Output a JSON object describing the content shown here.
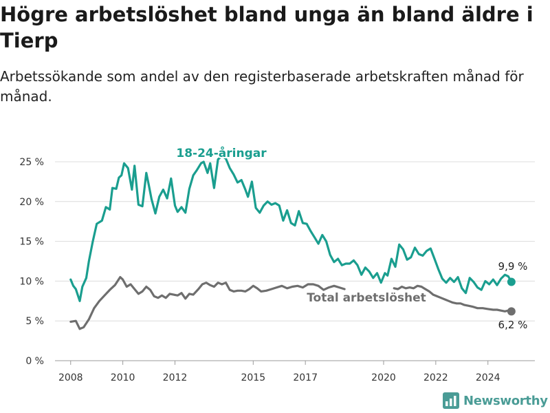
{
  "title": "Högre arbetslöshet bland unga än bland äldre i Tierp",
  "subtitle": "Arbetssökande som andel av den registerbaserade arbetskraften månad för månad.",
  "brand": {
    "name": "Newsworthy",
    "icon": "bar-chart-logo-icon",
    "color": "#4a9c96"
  },
  "chart_data": {
    "type": "line",
    "x_unit": "year",
    "xlim": [
      2007.4,
      2025.8
    ],
    "ylim": [
      0,
      25
    ],
    "x_ticks": [
      2008,
      2010,
      2012,
      2015,
      2017,
      2020,
      2022,
      2024
    ],
    "x_tick_labels": [
      "2008",
      "2010",
      "2012",
      "2015",
      "2017",
      "2020",
      "2022",
      "2024"
    ],
    "y_ticks": [
      0,
      5,
      10,
      15,
      20,
      25
    ],
    "y_tick_labels": [
      "0 %",
      "5 %",
      "10 %",
      "15 %",
      "20 %",
      "25 %"
    ],
    "grid": "horizontal",
    "legend": "none",
    "series": [
      {
        "name": "18-24-åringar",
        "color": "#1a9e8f",
        "end_label": "9,9 %",
        "x": [
          2008.0,
          2008.1,
          2008.2,
          2008.35,
          2008.45,
          2008.6,
          2008.7,
          2008.85,
          2009.0,
          2009.2,
          2009.35,
          2009.5,
          2009.6,
          2009.75,
          2009.85,
          2009.95,
          2010.05,
          2010.2,
          2010.35,
          2010.45,
          2010.6,
          2010.75,
          2010.9,
          2011.0,
          2011.1,
          2011.25,
          2011.4,
          2011.55,
          2011.7,
          2011.85,
          2012.0,
          2012.1,
          2012.25,
          2012.4,
          2012.55,
          2012.7,
          2012.85,
          2013.0,
          2013.1,
          2013.25,
          2013.35,
          2013.5,
          2013.65,
          2013.8,
          2013.95,
          2014.1,
          2014.25,
          2014.4,
          2014.55,
          2014.7,
          2014.8,
          2014.95,
          2015.1,
          2015.25,
          2015.4,
          2015.55,
          2015.7,
          2015.85,
          2016.0,
          2016.15,
          2016.3,
          2016.45,
          2016.6,
          2016.75,
          2016.9,
          2017.05,
          2017.2,
          2017.35,
          2017.5,
          2017.65,
          2017.8,
          2017.95,
          2018.1,
          2018.25,
          2018.4,
          2018.55,
          2018.7,
          2018.85,
          2019.0,
          2019.15,
          2019.3,
          2019.45,
          2019.6,
          2019.75,
          2019.9,
          2020.05,
          2020.15,
          2020.3,
          2020.45,
          2020.6,
          2020.75,
          2020.9,
          2021.05,
          2021.2,
          2021.35,
          2021.5,
          2021.65,
          2021.8,
          2021.95,
          2022.1,
          2022.25,
          2022.4,
          2022.55,
          2022.7,
          2022.85,
          2023.0,
          2023.15,
          2023.3,
          2023.45,
          2023.6,
          2023.75,
          2023.9,
          2024.05,
          2024.2,
          2024.35,
          2024.5,
          2024.65,
          2024.78,
          2024.9
        ],
        "y": [
          10.2,
          9.4,
          9.0,
          7.5,
          9.3,
          10.4,
          12.5,
          15.0,
          17.2,
          17.6,
          19.3,
          19.0,
          21.7,
          21.6,
          23.0,
          23.3,
          24.8,
          24.2,
          21.5,
          24.5,
          19.6,
          19.4,
          23.6,
          22.0,
          20.3,
          18.5,
          20.6,
          21.5,
          20.4,
          22.9,
          19.5,
          18.7,
          19.3,
          18.6,
          21.6,
          23.3,
          24.0,
          24.8,
          25.0,
          23.6,
          24.8,
          21.7,
          25.3,
          25.7,
          25.4,
          24.2,
          23.4,
          22.4,
          22.7,
          21.5,
          20.6,
          22.5,
          19.2,
          18.6,
          19.5,
          20.0,
          19.6,
          19.8,
          19.5,
          17.6,
          18.9,
          17.3,
          17.0,
          18.8,
          17.3,
          17.2,
          16.3,
          15.5,
          14.7,
          15.8,
          15.0,
          13.3,
          12.4,
          12.8,
          12.0,
          12.2,
          12.2,
          12.6,
          12.0,
          10.8,
          11.7,
          11.2,
          10.4,
          11.0,
          9.8,
          11.0,
          10.7,
          12.8,
          11.8,
          14.6,
          14.0,
          12.7,
          13.0,
          14.2,
          13.4,
          13.2,
          13.8,
          14.1,
          12.8,
          11.5,
          10.3,
          9.8,
          10.4,
          9.9,
          10.5,
          9.1,
          8.5,
          10.4,
          9.9,
          9.2,
          8.9,
          10.0,
          9.6,
          10.2,
          9.5,
          10.3,
          10.8,
          10.6,
          9.9
        ]
      },
      {
        "name": "Total arbetslöshet",
        "color": "#6e6e6e",
        "end_label": "6,2 %",
        "x": [
          2008.0,
          2008.2,
          2008.35,
          2008.5,
          2008.7,
          2008.9,
          2009.1,
          2009.3,
          2009.5,
          2009.7,
          2009.9,
          2010.0,
          2010.15,
          2010.3,
          2010.45,
          2010.6,
          2010.75,
          2010.9,
          2011.05,
          2011.2,
          2011.35,
          2011.5,
          2011.65,
          2011.8,
          2011.95,
          2012.1,
          2012.25,
          2012.4,
          2012.55,
          2012.7,
          2012.9,
          2013.05,
          2013.2,
          2013.35,
          2013.5,
          2013.65,
          2013.8,
          2013.95,
          2014.1,
          2014.25,
          2014.4,
          2014.55,
          2014.7,
          2014.85,
          2015.0,
          2015.15,
          2015.3,
          2015.5,
          2015.7,
          2015.9,
          2016.1,
          2016.3,
          2016.5,
          2016.7,
          2016.9,
          2017.1,
          2017.3,
          2017.5,
          2017.7,
          2017.9,
          2018.1,
          2018.3,
          2018.5,
          2020.4,
          2020.55,
          2020.7,
          2020.85,
          2021.0,
          2021.15,
          2021.3,
          2021.45,
          2021.6,
          2021.75,
          2021.9,
          2022.05,
          2022.2,
          2022.35,
          2022.5,
          2022.65,
          2022.8,
          2022.95,
          2023.1,
          2023.25,
          2023.4,
          2023.6,
          2023.8,
          2024.0,
          2024.2,
          2024.35,
          2024.5,
          2024.65,
          2024.78,
          2024.9
        ],
        "y": [
          4.9,
          5.0,
          4.0,
          4.2,
          5.2,
          6.6,
          7.5,
          8.2,
          8.9,
          9.5,
          10.5,
          10.2,
          9.3,
          9.6,
          9.0,
          8.4,
          8.7,
          9.3,
          8.9,
          8.1,
          7.9,
          8.2,
          7.9,
          8.4,
          8.3,
          8.2,
          8.5,
          7.8,
          8.4,
          8.3,
          9.0,
          9.6,
          9.8,
          9.5,
          9.3,
          9.8,
          9.6,
          9.8,
          8.9,
          8.7,
          8.8,
          8.8,
          8.7,
          9.0,
          9.4,
          9.1,
          8.7,
          8.8,
          9.0,
          9.2,
          9.4,
          9.1,
          9.3,
          9.4,
          9.2,
          9.6,
          9.6,
          9.4,
          8.9,
          9.2,
          9.4,
          9.2,
          9.0,
          9.1,
          9.0,
          9.3,
          9.1,
          9.2,
          9.1,
          9.4,
          9.3,
          9.0,
          8.7,
          8.3,
          8.1,
          7.9,
          7.7,
          7.5,
          7.3,
          7.2,
          7.2,
          7.0,
          6.9,
          6.8,
          6.6,
          6.6,
          6.5,
          6.4,
          6.4,
          6.3,
          6.2,
          6.3,
          6.2
        ]
      }
    ]
  }
}
